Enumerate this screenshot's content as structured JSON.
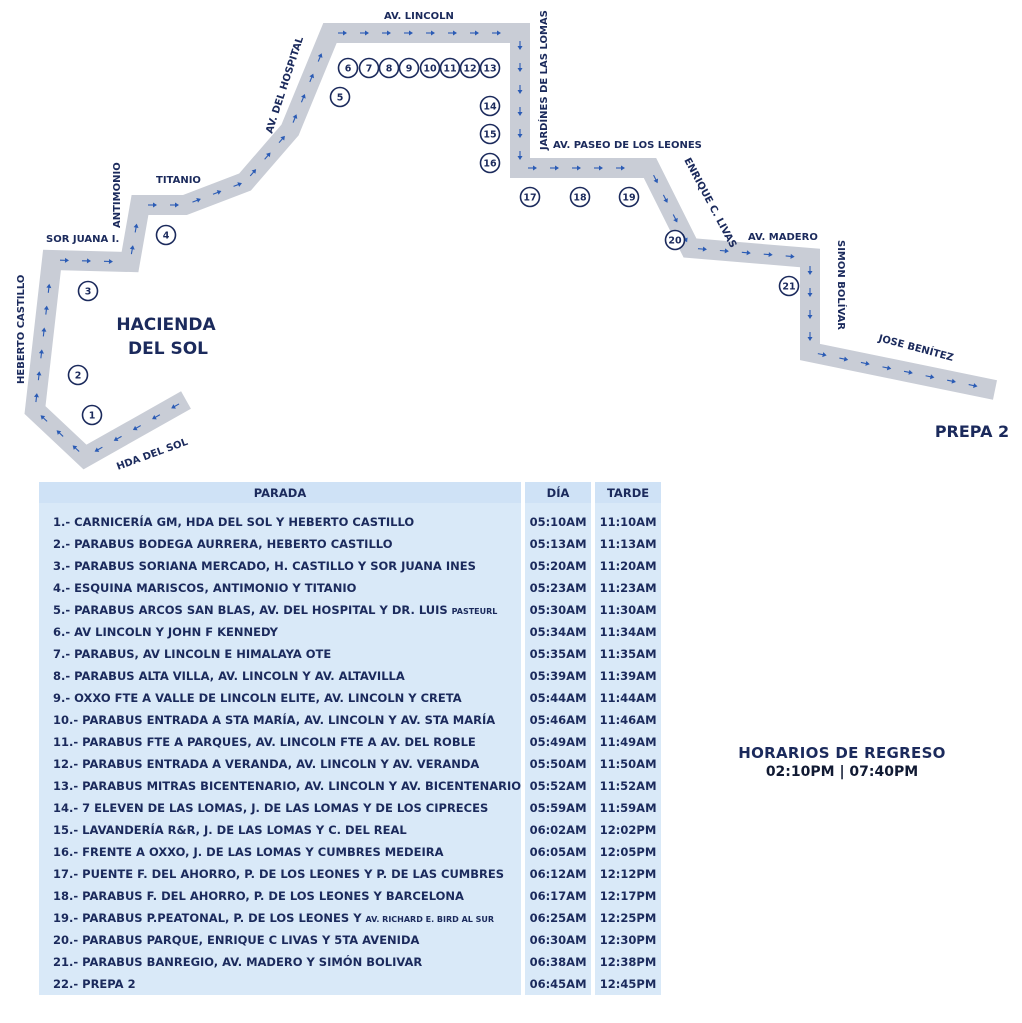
{
  "map": {
    "place_label_line1": "HACIENDA",
    "place_label_line2": "DEL SOL",
    "destination_label": "PREPA 2",
    "streets": {
      "hda_del_sol": "HDA DEL SOL",
      "heberto_castillo": "HEBERTO CASTILLO",
      "sor_juana": "SOR JUANA I.",
      "antimonio": "ANTIMONIO",
      "titanio": "TITANIO",
      "av_del_hospital": "AV. DEL HOSPITAL",
      "av_lincoln": "AV. LINCOLN",
      "jardines_de_las_lomas": "JARDÍNES DE LAS LOMAS",
      "av_paseo_de_los_leones": "AV. PASEO DE LOS LEONES",
      "enrique_c_livas": "ENRIQUE C. LIVAS",
      "av_madero": "AV. MADERO",
      "simon_bolivar": "SIMON BOLÍVAR",
      "jose_benitez": "JOSE BENÍTEZ"
    },
    "stop_markers": [
      "1",
      "2",
      "3",
      "4",
      "5",
      "6",
      "7",
      "8",
      "9",
      "10",
      "11",
      "12",
      "13",
      "14",
      "15",
      "16",
      "17",
      "18",
      "19",
      "20",
      "21"
    ],
    "route_color": "#c9cdd6",
    "arrow_color": "#2a5bb5",
    "text_color": "#1b2a5c"
  },
  "schedule": {
    "headers": {
      "stop": "PARADA",
      "day": "DÍA",
      "afternoon": "TARDE"
    },
    "rows": [
      {
        "stop": "1.- CARNICERÍA GM, HDA DEL SOL Y HEBERTO CASTILLO",
        "stop_small": "",
        "day": "05:10AM",
        "afternoon": "11:10AM"
      },
      {
        "stop": "2.- PARABUS BODEGA AURRERA, HEBERTO CASTILLO",
        "stop_small": "",
        "day": "05:13AM",
        "afternoon": "11:13AM"
      },
      {
        "stop": "3.- PARABUS SORIANA MERCADO, H. CASTILLO Y SOR JUANA INES",
        "stop_small": "",
        "day": "05:20AM",
        "afternoon": "11:20AM"
      },
      {
        "stop": "4.- ESQUINA MARISCOS, ANTIMONIO Y TITANIO",
        "stop_small": "",
        "day": "05:23AM",
        "afternoon": "11:23AM"
      },
      {
        "stop": "5.- PARABUS ARCOS SAN BLAS, AV. DEL HOSPITAL Y DR. LUIS ",
        "stop_small": "PASTEURL",
        "day": "05:30AM",
        "afternoon": "11:30AM"
      },
      {
        "stop": "6.- AV LINCOLN Y JOHN F KENNEDY",
        "stop_small": "",
        "day": "05:34AM",
        "afternoon": "11:34AM"
      },
      {
        "stop": "7.- PARABUS, AV LINCOLN E HIMALAYA OTE",
        "stop_small": "",
        "day": "05:35AM",
        "afternoon": "11:35AM"
      },
      {
        "stop": "8.- PARABUS ALTA VILLA, AV. LINCOLN Y AV. ALTAVILLA",
        "stop_small": "",
        "day": "05:39AM",
        "afternoon": "11:39AM"
      },
      {
        "stop": "9.- OXXO FTE A VALLE DE LINCOLN ELITE, AV. LINCOLN Y CRETA",
        "stop_small": "",
        "day": "05:44AM",
        "afternoon": "11:44AM"
      },
      {
        "stop": "10.- PARABUS ENTRADA A STA MARÍA, AV. LINCOLN Y AV. STA MARÍA",
        "stop_small": "",
        "day": "05:46AM",
        "afternoon": "11:46AM"
      },
      {
        "stop": "11.- PARABUS FTE A PARQUES, AV. LINCOLN FTE A AV. DEL ROBLE",
        "stop_small": "",
        "day": "05:49AM",
        "afternoon": "11:49AM"
      },
      {
        "stop": "12.- PARABUS ENTRADA A VERANDA, AV. LINCOLN Y AV. VERANDA",
        "stop_small": "",
        "day": "05:50AM",
        "afternoon": "11:50AM"
      },
      {
        "stop": "13.- PARABUS MITRAS BICENTENARIO, AV. LINCOLN Y AV. BICENTENARIO",
        "stop_small": "",
        "day": "05:52AM",
        "afternoon": "11:52AM"
      },
      {
        "stop": "14.- 7 ELEVEN DE LAS LOMAS, J. DE LAS LOMAS Y DE LOS CIPRECES",
        "stop_small": "",
        "day": "05:59AM",
        "afternoon": "11:59AM"
      },
      {
        "stop": "15.- LAVANDERÍA R&R, J. DE LAS LOMAS Y C. DEL REAL",
        "stop_small": "",
        "day": "06:02AM",
        "afternoon": "12:02PM"
      },
      {
        "stop": "16.- FRENTE A OXXO, J. DE LAS LOMAS Y CUMBRES MEDEIRA",
        "stop_small": "",
        "day": "06:05AM",
        "afternoon": "12:05PM"
      },
      {
        "stop": "17.- PUENTE F. DEL AHORRO, P. DE LOS LEONES Y P. DE LAS CUMBRES",
        "stop_small": "",
        "day": "06:12AM",
        "afternoon": "12:12PM"
      },
      {
        "stop": "18.- PARABUS F. DEL AHORRO, P. DE LOS LEONES Y BARCELONA",
        "stop_small": "",
        "day": "06:17AM",
        "afternoon": "12:17PM"
      },
      {
        "stop": "19.- PARABUS P.PEATONAL, P. DE LOS LEONES Y ",
        "stop_small": "AV. RICHARD E. BIRD AL SUR",
        "day": "06:25AM",
        "afternoon": "12:25PM"
      },
      {
        "stop": "20.- PARABUS PARQUE, ENRIQUE C LIVAS Y 5TA AVENIDA",
        "stop_small": "",
        "day": "06:30AM",
        "afternoon": "12:30PM"
      },
      {
        "stop": "21.- PARABUS BANREGIO, AV. MADERO Y SIMÓN BOLIVAR",
        "stop_small": "",
        "day": "06:38AM",
        "afternoon": "12:38PM"
      },
      {
        "stop": "22.- PREPA 2",
        "stop_small": "",
        "day": "06:45AM",
        "afternoon": "12:45PM"
      }
    ]
  },
  "return_schedule": {
    "title": "HORARIOS DE REGRESO",
    "times": "02:10PM | 07:40PM"
  }
}
